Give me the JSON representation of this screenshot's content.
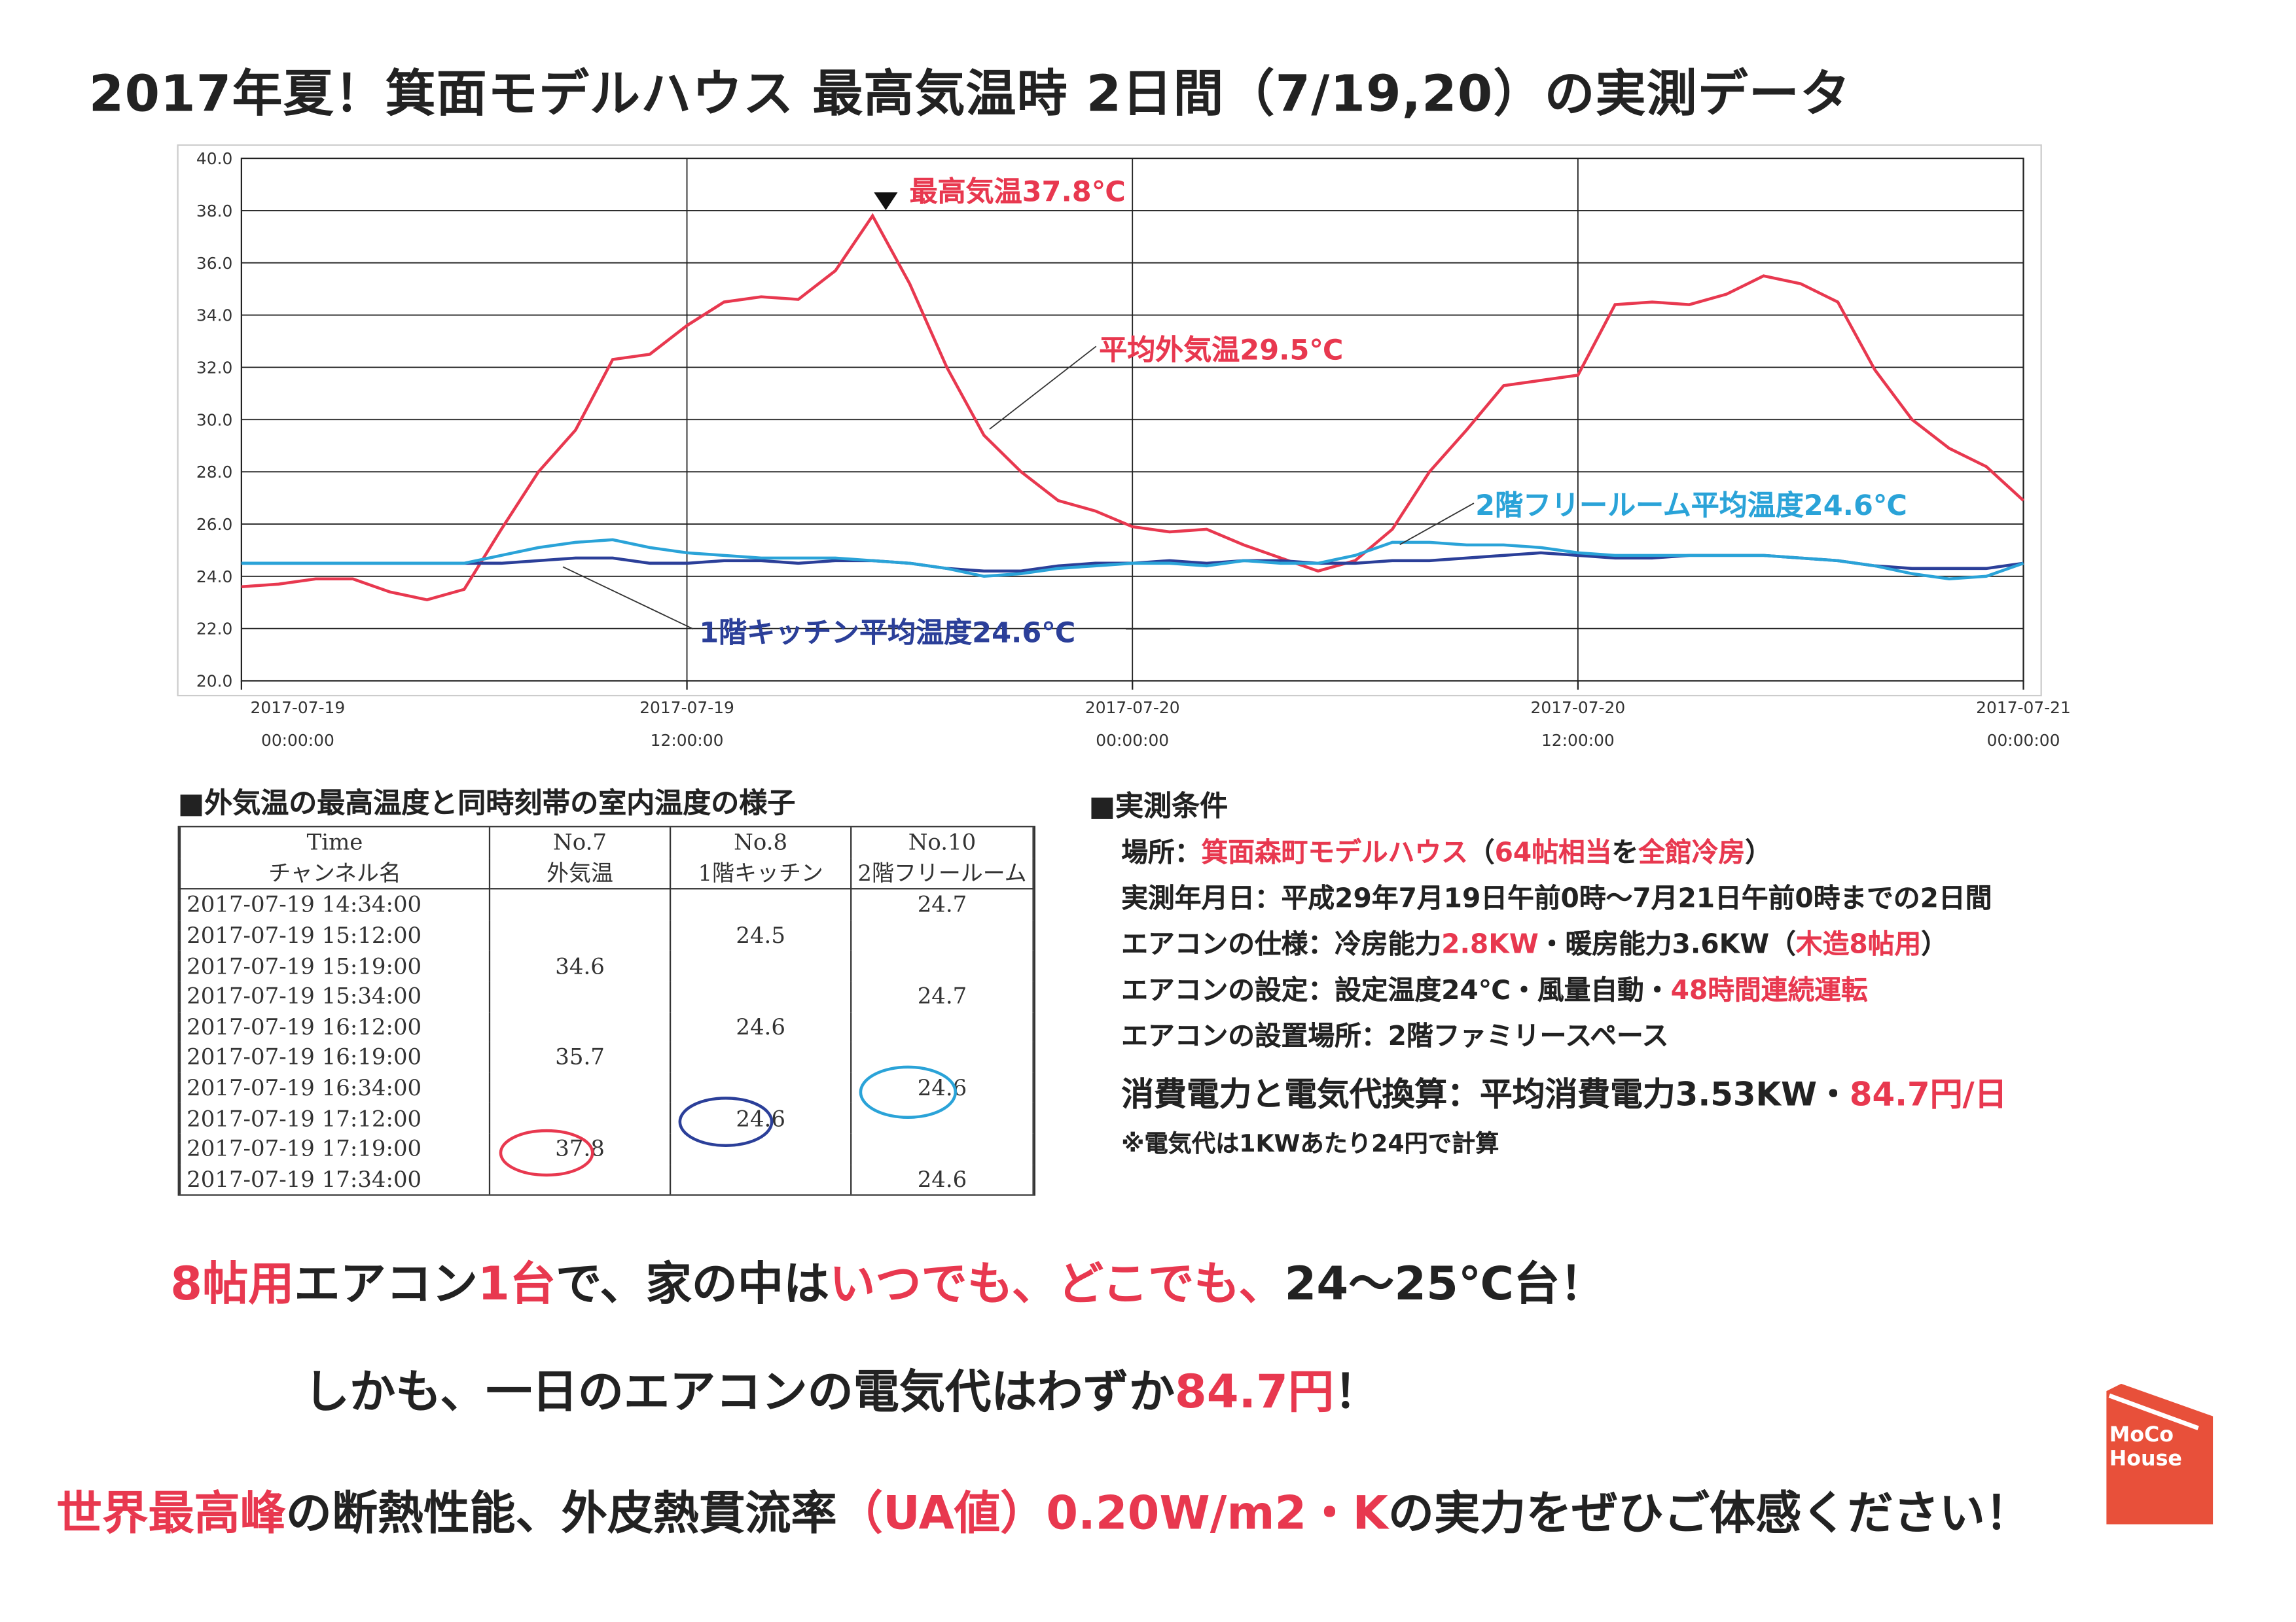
{
  "title": "2017年夏！箕面モデルハウス 最高気温時 2日間（7/19,20）の実測データ",
  "chart_data": {
    "type": "line",
    "x": [
      "2017-07-19 00:00",
      "2017-07-19 01:00",
      "2017-07-19 02:00",
      "2017-07-19 03:00",
      "2017-07-19 04:00",
      "2017-07-19 05:00",
      "2017-07-19 06:00",
      "2017-07-19 07:00",
      "2017-07-19 08:00",
      "2017-07-19 09:00",
      "2017-07-19 10:00",
      "2017-07-19 11:00",
      "2017-07-19 12:00",
      "2017-07-19 13:00",
      "2017-07-19 14:00",
      "2017-07-19 15:00",
      "2017-07-19 16:00",
      "2017-07-19 17:00",
      "2017-07-19 18:00",
      "2017-07-19 19:00",
      "2017-07-19 20:00",
      "2017-07-19 21:00",
      "2017-07-19 22:00",
      "2017-07-19 23:00",
      "2017-07-20 00:00",
      "2017-07-20 01:00",
      "2017-07-20 02:00",
      "2017-07-20 03:00",
      "2017-07-20 04:00",
      "2017-07-20 05:00",
      "2017-07-20 06:00",
      "2017-07-20 07:00",
      "2017-07-20 08:00",
      "2017-07-20 09:00",
      "2017-07-20 10:00",
      "2017-07-20 11:00",
      "2017-07-20 12:00",
      "2017-07-20 13:00",
      "2017-07-20 14:00",
      "2017-07-20 15:00",
      "2017-07-20 16:00",
      "2017-07-20 17:00",
      "2017-07-20 18:00",
      "2017-07-20 19:00",
      "2017-07-20 20:00",
      "2017-07-20 21:00",
      "2017-07-20 22:00",
      "2017-07-20 23:00",
      "2017-07-21 00:00"
    ],
    "series": [
      {
        "color": "#e8384f",
        "values": [
          23.6,
          23.7,
          23.9,
          23.9,
          23.4,
          23.1,
          23.5,
          25.8,
          28.0,
          29.6,
          32.3,
          32.5,
          33.6,
          34.5,
          34.7,
          34.6,
          35.7,
          37.8,
          35.2,
          32.0,
          29.4,
          28.0,
          26.9,
          26.5,
          25.9,
          25.7,
          25.8,
          25.2,
          24.7,
          24.2,
          24.6,
          25.8,
          28.0,
          29.6,
          31.3,
          31.5,
          31.7,
          34.4,
          34.5,
          34.4,
          34.8,
          35.5,
          35.2,
          34.5,
          31.9,
          30.0,
          28.9,
          28.2,
          26.9
        ]
      },
      {
        "color": "#2b3f99",
        "values": [
          24.5,
          24.5,
          24.5,
          24.5,
          24.5,
          24.5,
          24.5,
          24.5,
          24.6,
          24.7,
          24.7,
          24.5,
          24.5,
          24.6,
          24.6,
          24.5,
          24.6,
          24.6,
          24.5,
          24.3,
          24.2,
          24.2,
          24.4,
          24.5,
          24.5,
          24.6,
          24.5,
          24.6,
          24.6,
          24.5,
          24.5,
          24.6,
          24.6,
          24.7,
          24.8,
          24.9,
          24.8,
          24.7,
          24.7,
          24.8,
          24.8,
          24.8,
          24.7,
          24.6,
          24.4,
          24.3,
          24.3,
          24.3,
          24.5
        ]
      },
      {
        "color": "#2aa3d8",
        "values": [
          24.5,
          24.5,
          24.5,
          24.5,
          24.5,
          24.5,
          24.5,
          24.8,
          25.1,
          25.3,
          25.4,
          25.1,
          24.9,
          24.8,
          24.7,
          24.7,
          24.7,
          24.6,
          24.5,
          24.3,
          24.0,
          24.1,
          24.3,
          24.4,
          24.5,
          24.5,
          24.4,
          24.6,
          24.5,
          24.5,
          24.8,
          25.3,
          25.3,
          25.2,
          25.2,
          25.1,
          24.9,
          24.8,
          24.8,
          24.8,
          24.8,
          24.8,
          24.7,
          24.6,
          24.4,
          24.1,
          23.9,
          24.0,
          24.5
        ]
      }
    ],
    "xlim": [
      "2017-07-19 00:00",
      "2017-07-21 00:00"
    ],
    "xticks": [
      {
        "value": "2017-07-19 00:00",
        "label": "2017-07-19\n00:00:00"
      },
      {
        "value": "2017-07-19 12:00",
        "label": "2017-07-19\n12:00:00"
      },
      {
        "value": "2017-07-20 00:00",
        "label": "2017-07-20\n00:00:00"
      },
      {
        "value": "2017-07-20 12:00",
        "label": "2017-07-20\n12:00:00"
      },
      {
        "value": "2017-07-21 00:00",
        "label": "2017-07-21\n00:00:00"
      }
    ],
    "ylim": [
      20,
      40
    ],
    "yticks": [
      {
        "value": 20,
        "label": "20.0"
      },
      {
        "value": 22,
        "label": "22.0"
      },
      {
        "value": 24,
        "label": "24.0"
      },
      {
        "value": 26,
        "label": "26.0"
      },
      {
        "value": 28,
        "label": "28.0"
      },
      {
        "value": 30,
        "label": "30.0"
      },
      {
        "value": 32,
        "label": "32.0"
      },
      {
        "value": 34,
        "label": "34.0"
      },
      {
        "value": 36,
        "label": "36.0"
      },
      {
        "value": 38,
        "label": "38.0"
      },
      {
        "value": 40,
        "label": "40.0"
      }
    ],
    "grid": true,
    "annotations": [
      "最高気温37.8℃",
      "平均外気温29.5℃",
      "2階フリールーム平均温度24.6℃",
      "1階キッチン平均温度24.6℃"
    ]
  },
  "table": {
    "title": "■外気温の最高温度と同時刻帯の室内温度の様子",
    "header": [
      [
        "Time",
        "No.7",
        "No.8",
        "No.10"
      ],
      [
        "チャンネル名",
        "外気温",
        "1階キッチン",
        "2階フリールーム"
      ]
    ],
    "rows": [
      [
        "2017-07-19 14:34:00",
        null,
        null,
        24.7
      ],
      [
        "2017-07-19 15:12:00",
        null,
        24.5,
        null
      ],
      [
        "2017-07-19 15:19:00",
        34.6,
        null,
        null
      ],
      [
        "2017-07-19 15:34:00",
        null,
        null,
        24.7
      ],
      [
        "2017-07-19 16:12:00",
        null,
        24.6,
        null
      ],
      [
        "2017-07-19 16:19:00",
        35.7,
        null,
        null
      ],
      [
        "2017-07-19 16:34:00",
        null,
        null,
        24.6
      ],
      [
        "2017-07-19 17:12:00",
        null,
        24.6,
        null
      ],
      [
        "2017-07-19 17:19:00",
        37.8,
        null,
        null
      ],
      [
        "2017-07-19 17:34:00",
        null,
        null,
        24.6
      ]
    ]
  },
  "conditions": {
    "title": "■実測条件",
    "lines": [
      [
        {
          "t": "場所："
        },
        {
          "t": "箕面森町モデルハウス",
          "c": "#e8384f"
        },
        {
          "t": "（"
        },
        {
          "t": "64帖相当",
          "c": "#e8384f"
        },
        {
          "t": "を"
        },
        {
          "t": "全館冷房",
          "c": "#e8384f"
        },
        {
          "t": "）"
        }
      ],
      [
        {
          "t": "実測年月日：平成29年7月19日午前0時～7月21日午前0時までの2日間"
        }
      ],
      [
        {
          "t": "エアコンの仕様：冷房能力"
        },
        {
          "t": "2.8KW",
          "c": "#e8384f"
        },
        {
          "t": "・暖房能力3.6KW（"
        },
        {
          "t": "木造8帖用",
          "c": "#e8384f"
        },
        {
          "t": "）"
        }
      ],
      [
        {
          "t": "エアコンの設定：設定温度24℃・風量自動・"
        },
        {
          "t": "48時間連続運転",
          "c": "#e8384f"
        }
      ],
      [
        {
          "t": "エアコンの設置場所：2階ファミリースペース"
        }
      ],
      [
        {
          "t": "消費電力と電気代換算：平均消費電力3.53KW・"
        },
        {
          "t": "84.7円/日",
          "c": "#e8384f"
        }
      ],
      [
        {
          "t": "※電気代は1KWあたり24円で計算"
        }
      ]
    ]
  },
  "headlines": [
    [
      {
        "t": "8帖用",
        "c": "#e8384f"
      },
      {
        "t": "エアコン"
      },
      {
        "t": "1台",
        "c": "#e8384f"
      },
      {
        "t": "で、家の中は"
      },
      {
        "t": "いつでも、どこでも、",
        "c": "#e8384f"
      },
      {
        "t": "24～25℃台！"
      }
    ],
    [
      {
        "t": "しかも、一日のエアコンの電気代はわずか"
      },
      {
        "t": "84.7円",
        "c": "#e8384f"
      },
      {
        "t": "！"
      }
    ],
    [
      {
        "t": "世界最高峰",
        "c": "#e8384f"
      },
      {
        "t": "の断熱性能、外皮熱貫流率"
      },
      {
        "t": "（UA値）0.20W/m2・K",
        "c": "#e8384f"
      },
      {
        "t": "の実力をぜひご体感ください！"
      }
    ]
  ],
  "logo": [
    "MoCo",
    "House"
  ]
}
